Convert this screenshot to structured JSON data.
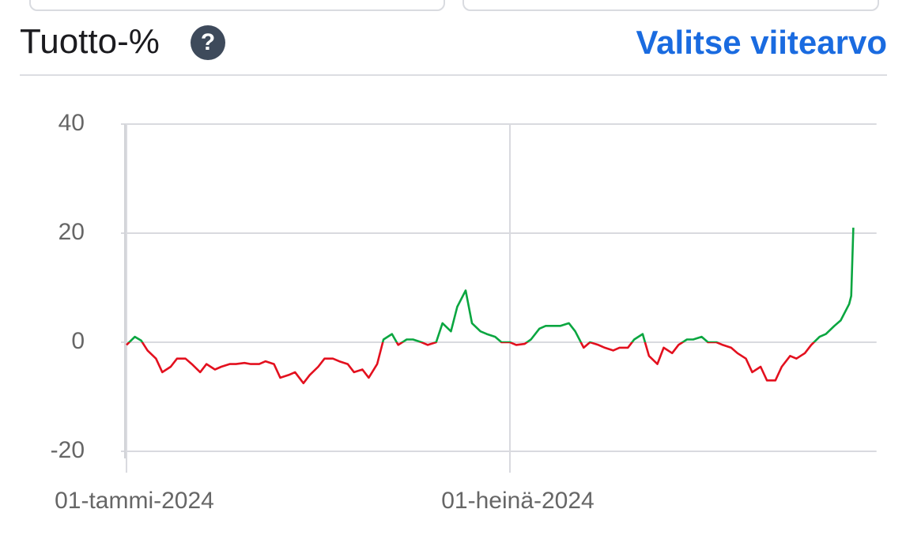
{
  "header": {
    "title": "Tuotto-%",
    "help": "?",
    "link": "Valitse viitearvo"
  },
  "chart_data": {
    "type": "line",
    "x": [
      0,
      4,
      7,
      10,
      14,
      17,
      21,
      24,
      28,
      31,
      35,
      38,
      42,
      45,
      49,
      52,
      56,
      59,
      63,
      66,
      70,
      73,
      77,
      80,
      84,
      87,
      91,
      94,
      98,
      101,
      105,
      108,
      112,
      115,
      119,
      122,
      126,
      129,
      133,
      136,
      140,
      143,
      147,
      150,
      154,
      157,
      161,
      164,
      168,
      171,
      175,
      178,
      182,
      185,
      189,
      192,
      196,
      199,
      203,
      206,
      210,
      213,
      217,
      220,
      224,
      227,
      231,
      234,
      238,
      241,
      245,
      248,
      252,
      255,
      259,
      262,
      266,
      269,
      273,
      276,
      280,
      283,
      287,
      290,
      294,
      297,
      301,
      304,
      308,
      311,
      315,
      318,
      322,
      325,
      329,
      332,
      336,
      339,
      343,
      344,
      345
    ],
    "values": [
      -0.5,
      1,
      0.3,
      -1.5,
      -3,
      -5.5,
      -4.5,
      -3,
      -3,
      -4,
      -5.5,
      -4,
      -5,
      -4.5,
      -4,
      -4,
      -3.8,
      -4,
      -4,
      -3.5,
      -4,
      -6.5,
      -6,
      -5.5,
      -7.5,
      -6,
      -4.5,
      -3,
      -3,
      -3.5,
      -4,
      -5.5,
      -5,
      -6.5,
      -4,
      0.5,
      1.5,
      -0.5,
      0.5,
      0.5,
      0,
      -0.5,
      0,
      3.5,
      2,
      6.5,
      9.5,
      3.5,
      2,
      1.5,
      1,
      0,
      0,
      -0.5,
      -0.3,
      0.5,
      2.5,
      3,
      3,
      3,
      3.5,
      2,
      -1,
      0,
      -0.5,
      -1,
      -1.5,
      -1,
      -1,
      0.5,
      1.5,
      -2.5,
      -4,
      -1,
      -2,
      -0.5,
      0.5,
      0.5,
      1,
      0,
      0,
      -0.5,
      -1,
      -2,
      -3,
      -5.5,
      -4.5,
      -7,
      -7,
      -4.5,
      -2.5,
      -3,
      -2,
      -0.5,
      1,
      1.5,
      3,
      4,
      7,
      8.5,
      21
    ],
    "colors": {
      "above_zero": "#0aa640",
      "below_zero": "#e3101e"
    },
    "xlim": [
      -1,
      356
    ],
    "xticks": [
      {
        "value": 0,
        "label": "01-tammi-2024"
      },
      {
        "value": 182,
        "label": "01-heinä-2024"
      }
    ],
    "ylim": [
      -20,
      40
    ],
    "yticks": [
      -20,
      0,
      20,
      40
    ],
    "grid": true
  }
}
